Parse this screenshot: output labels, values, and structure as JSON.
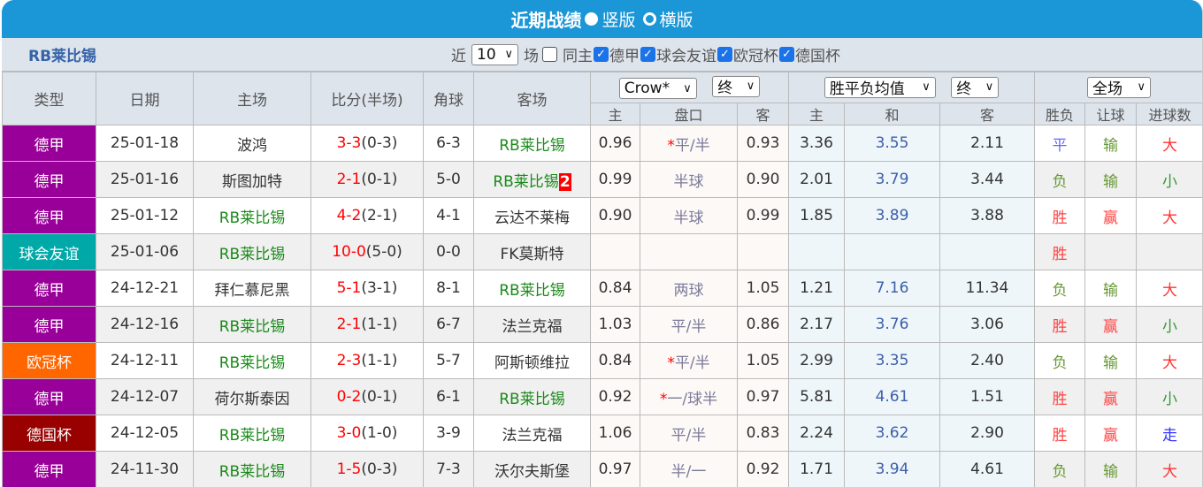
{
  "title": {
    "text": "近期战绩",
    "option1": "竖版",
    "option2": "横版",
    "selected": "竖版"
  },
  "filter": {
    "team": "RB莱比锡",
    "prefix": "近",
    "count": "10",
    "suffix": "场",
    "same_home": "同主",
    "same_home_checked": false,
    "leagues": [
      {
        "label": "德甲",
        "checked": true
      },
      {
        "label": "球会友谊",
        "checked": true
      },
      {
        "label": "欧冠杯",
        "checked": true
      },
      {
        "label": "德国杯",
        "checked": true
      }
    ]
  },
  "header": {
    "type": "类型",
    "date": "日期",
    "home": "主场",
    "score": "比分(半场)",
    "corner": "角球",
    "away": "客场",
    "company": "Crow*",
    "stage1": "终",
    "odds_type": "胜平负均值",
    "stage2": "终",
    "period": "全场",
    "sub": [
      "主",
      "盘口",
      "客",
      "主",
      "和",
      "客",
      "胜负",
      "让球",
      "进球数"
    ]
  },
  "colors": {
    "德甲": "#990099",
    "球会友谊": "#00a8a8",
    "欧冠杯": "#ff6600",
    "德国杯": "#990000",
    "胜": "#ff4444",
    "负": "#669933",
    "平": "#6666ff",
    "赢": "#ff4444",
    "输": "#669933",
    "大": "#ff3333",
    "小": "#339933",
    "走": "#3333ff"
  },
  "rows": [
    {
      "type": "德甲",
      "date": "25-01-18",
      "home": "波鸿",
      "score": "3-3",
      "half": "(0-3)",
      "corner": "6-3",
      "away": "RB莱比锡",
      "away_red": "",
      "h": "0.96",
      "star": "*",
      "hc": "平/半",
      "a": "0.93",
      "o1": "3.36",
      "ox": "3.55",
      "o2": "2.11",
      "r": "平",
      "ah": "输",
      "ou": "大"
    },
    {
      "type": "德甲",
      "date": "25-01-16",
      "home": "斯图加特",
      "score": "2-1",
      "half": "(0-1)",
      "corner": "5-0",
      "away": "RB莱比锡",
      "away_red": "2",
      "h": "0.99",
      "star": "",
      "hc": "半球",
      "a": "0.90",
      "o1": "2.01",
      "ox": "3.79",
      "o2": "3.44",
      "r": "负",
      "ah": "输",
      "ou": "小"
    },
    {
      "type": "德甲",
      "date": "25-01-12",
      "home": "RB莱比锡",
      "score": "4-2",
      "half": "(2-1)",
      "corner": "4-1",
      "away": "云达不莱梅",
      "away_red": "",
      "h": "0.90",
      "star": "",
      "hc": "半球",
      "a": "0.99",
      "o1": "1.85",
      "ox": "3.89",
      "o2": "3.88",
      "r": "胜",
      "ah": "赢",
      "ou": "大"
    },
    {
      "type": "球会友谊",
      "date": "25-01-06",
      "home": "RB莱比锡",
      "score": "10-0",
      "half": "(5-0)",
      "corner": "0-0",
      "away": "FK莫斯特",
      "away_red": "",
      "h": "",
      "star": "",
      "hc": "",
      "a": "",
      "o1": "",
      "ox": "",
      "o2": "",
      "r": "胜",
      "ah": "",
      "ou": ""
    },
    {
      "type": "德甲",
      "date": "24-12-21",
      "home": "拜仁慕尼黑",
      "score": "5-1",
      "half": "(3-1)",
      "corner": "8-1",
      "away": "RB莱比锡",
      "away_red": "",
      "h": "0.84",
      "star": "",
      "hc": "两球",
      "a": "1.05",
      "o1": "1.21",
      "ox": "7.16",
      "o2": "11.34",
      "r": "负",
      "ah": "输",
      "ou": "大"
    },
    {
      "type": "德甲",
      "date": "24-12-16",
      "home": "RB莱比锡",
      "score": "2-1",
      "half": "(1-1)",
      "corner": "6-7",
      "away": "法兰克福",
      "away_red": "",
      "h": "1.03",
      "star": "",
      "hc": "平/半",
      "a": "0.86",
      "o1": "2.17",
      "ox": "3.76",
      "o2": "3.06",
      "r": "胜",
      "ah": "赢",
      "ou": "小"
    },
    {
      "type": "欧冠杯",
      "date": "24-12-11",
      "home": "RB莱比锡",
      "score": "2-3",
      "half": "(1-1)",
      "corner": "5-7",
      "away": "阿斯顿维拉",
      "away_red": "",
      "h": "0.84",
      "star": "*",
      "hc": "平/半",
      "a": "1.05",
      "o1": "2.99",
      "ox": "3.35",
      "o2": "2.40",
      "r": "负",
      "ah": "输",
      "ou": "大"
    },
    {
      "type": "德甲",
      "date": "24-12-07",
      "home": "荷尔斯泰因",
      "score": "0-2",
      "half": "(0-1)",
      "corner": "6-1",
      "away": "RB莱比锡",
      "away_red": "",
      "h": "0.92",
      "star": "*",
      "hc": "一/球半",
      "a": "0.97",
      "o1": "5.81",
      "ox": "4.61",
      "o2": "1.51",
      "r": "胜",
      "ah": "赢",
      "ou": "小"
    },
    {
      "type": "德国杯",
      "date": "24-12-05",
      "home": "RB莱比锡",
      "score": "3-0",
      "half": "(1-0)",
      "corner": "3-9",
      "away": "法兰克福",
      "away_red": "",
      "h": "1.06",
      "star": "",
      "hc": "平/半",
      "a": "0.83",
      "o1": "2.24",
      "ox": "3.62",
      "o2": "2.90",
      "r": "胜",
      "ah": "赢",
      "ou": "走"
    },
    {
      "type": "德甲",
      "date": "24-11-30",
      "home": "RB莱比锡",
      "score": "1-5",
      "half": "(0-3)",
      "corner": "7-3",
      "away": "沃尔夫斯堡",
      "away_red": "",
      "h": "0.97",
      "star": "",
      "hc": "半/一",
      "a": "0.92",
      "o1": "1.71",
      "ox": "3.94",
      "o2": "4.61",
      "r": "负",
      "ah": "输",
      "ou": "大"
    }
  ]
}
